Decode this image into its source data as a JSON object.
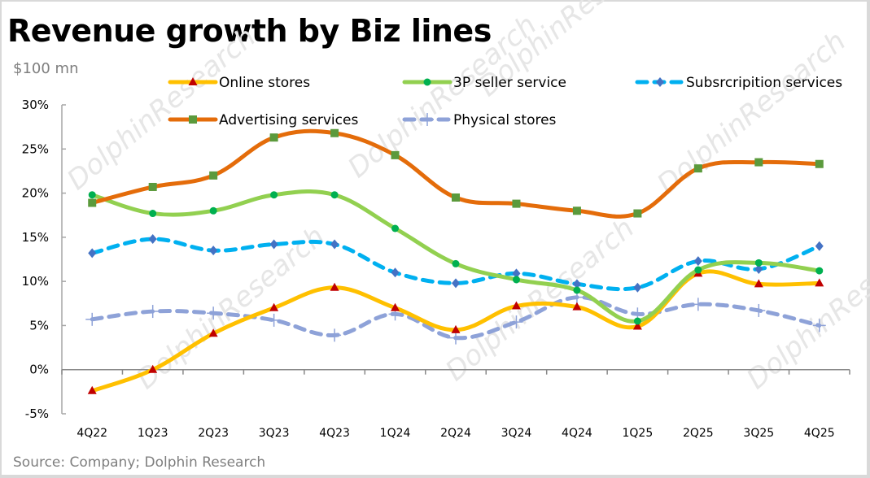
{
  "header": {
    "title": "Revenue growth by Biz lines",
    "unit": "$100 mn"
  },
  "footer": {
    "source": "Source: Company; Dolphin Research"
  },
  "watermark": "DolphinResearch",
  "chart_data": {
    "type": "line",
    "title": "Revenue growth by Biz lines",
    "xlabel": "",
    "ylabel": "$100 mn",
    "categories": [
      "4Q22",
      "1Q23",
      "2Q23",
      "3Q23",
      "4Q23",
      "1Q24",
      "2Q24",
      "3Q24",
      "4Q24",
      "1Q25",
      "2Q25",
      "3Q25",
      "4Q25"
    ],
    "ylim": [
      -5,
      30
    ],
    "yticks": [
      -5,
      0,
      5,
      10,
      15,
      20,
      25,
      30
    ],
    "ytick_labels": [
      "-5%",
      "0%",
      "5%",
      "10%",
      "15%",
      "20%",
      "25%",
      "30%"
    ],
    "grid": false,
    "legend_position": "top",
    "series": [
      {
        "name": "Online stores",
        "line_color": "#ffc000",
        "marker_color": "#c00000",
        "marker": "triangle",
        "dashed": false,
        "values": [
          -2.4,
          0.0,
          4.1,
          7.0,
          9.3,
          7.0,
          4.5,
          7.2,
          7.1,
          4.9,
          10.9,
          9.7,
          9.8
        ]
      },
      {
        "name": "3P seller service",
        "line_color": "#92d050",
        "marker_color": "#00b050",
        "marker": "circle",
        "dashed": false,
        "values": [
          19.8,
          17.7,
          18.0,
          19.8,
          19.8,
          16.0,
          12.0,
          10.2,
          9.0,
          5.5,
          11.3,
          12.1,
          11.2
        ]
      },
      {
        "name": "Subsrcripition services",
        "line_color": "#00b0f0",
        "marker_color": "#4472c4",
        "marker": "diamond",
        "dashed": true,
        "values": [
          13.2,
          14.8,
          13.5,
          14.2,
          14.2,
          11.0,
          9.8,
          10.9,
          9.7,
          9.3,
          12.3,
          11.4,
          14.0
        ]
      },
      {
        "name": "Advertising services",
        "line_color": "#e46c0a",
        "marker_color": "#5b9a3c",
        "marker": "square",
        "dashed": false,
        "values": [
          18.9,
          20.7,
          22.0,
          26.3,
          26.8,
          24.3,
          19.5,
          18.8,
          18.0,
          17.7,
          22.8,
          23.5,
          23.3
        ]
      },
      {
        "name": "Physical stores",
        "line_color": "#8ea2d8",
        "marker_color": "#8ea2d8",
        "marker": "plus",
        "dashed": true,
        "values": [
          5.7,
          6.6,
          6.4,
          5.6,
          3.9,
          6.3,
          3.6,
          5.4,
          8.2,
          6.3,
          7.4,
          6.7,
          5.0
        ]
      }
    ]
  }
}
